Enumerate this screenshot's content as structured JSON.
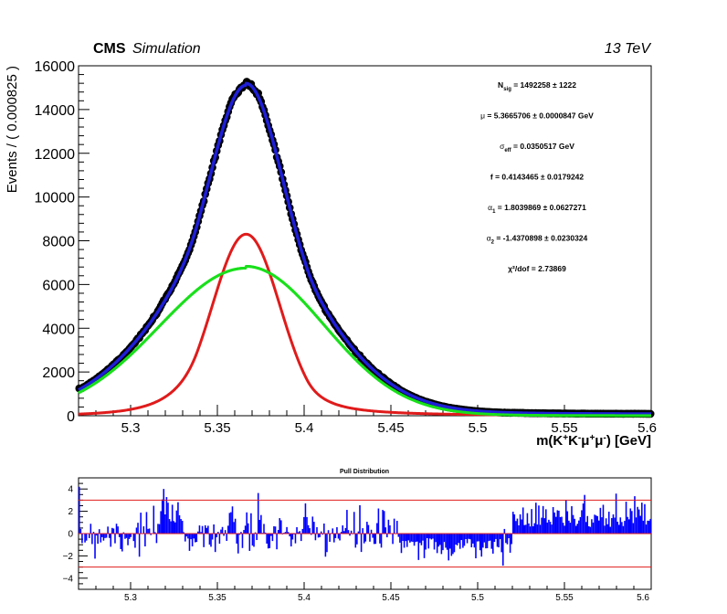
{
  "header": {
    "cms": "CMS",
    "simulation": "Simulation",
    "energy": "13 TeV"
  },
  "fit_results": [
    {
      "sym": "N",
      "sub": "sig",
      "text": " = 1492258  ± 1222"
    },
    {
      "sym": "μ",
      "sub": "",
      "text": "  = 5.3665706  ± 0.0000847 GeV"
    },
    {
      "sym": "σ",
      "sub": "eff",
      "text": " = 0.0350517  GeV"
    },
    {
      "sym": "f",
      "sub": "",
      "text": " = 0.4143465  ± 0.0179242"
    },
    {
      "sym": "α",
      "sub": "1",
      "text": " = 1.8039869  ± 0.0627271"
    },
    {
      "sym": "α",
      "sub": "2",
      "text": " = -1.4370898  ± 0.0230324"
    },
    {
      "sym": "χ²/dof",
      "sub": "",
      "text": "  = 2.73869"
    }
  ],
  "chart_data": [
    {
      "type": "line",
      "title": "",
      "ylabel": "Events / ( 0.000825 )",
      "xlabel_parts": [
        {
          "t": "m(K"
        },
        {
          "t": "+",
          "sup": true
        },
        {
          "t": "K"
        },
        {
          "t": "-",
          "sup": true
        },
        {
          "t": "μ"
        },
        {
          "t": "+",
          "sup": true
        },
        {
          "t": "μ"
        },
        {
          "t": "-",
          "sup": true
        },
        {
          "t": ") [GeV]"
        }
      ],
      "xlim": [
        5.27,
        5.6
      ],
      "ylim": [
        0,
        16000
      ],
      "x_ticks": [
        "5.3",
        "5.35",
        "5.4",
        "5.45",
        "5.5",
        "5.55",
        "5.6"
      ],
      "y_ticks": [
        "0",
        "2000",
        "4000",
        "6000",
        "8000",
        "10000",
        "12000",
        "14000",
        "16000"
      ],
      "model": {
        "mu": 5.3665706,
        "total_peak": 15150,
        "cb_peak": 8300,
        "cb_sigma": 0.0195,
        "alpha1": 1.8039869,
        "alpha2": -1.4370898,
        "n1": 2.0,
        "n2": 6.0,
        "gauss_peak": 6750,
        "gauss_sigma": 0.05,
        "gauss_tail_right": 0.045
      },
      "series": [
        {
          "role": "data",
          "color": "#000000"
        },
        {
          "role": "total fit",
          "color": "#1f1fd8"
        },
        {
          "role": "crystal ball component",
          "color": "#e01b1b"
        },
        {
          "role": "gaussian component",
          "color": "#19e01b"
        }
      ]
    },
    {
      "type": "bar",
      "title": "Pull Distribution",
      "xlim": [
        5.27,
        5.6
      ],
      "ylim": [
        -5,
        5
      ],
      "x_ticks": [
        "5.3",
        "5.35",
        "5.4",
        "5.45",
        "5.5",
        "5.55",
        "5.6"
      ],
      "y_ticks": [
        "−4",
        "−2",
        "0",
        "2",
        "4"
      ],
      "reference_lines": [
        3,
        0,
        -3
      ],
      "bar_color": "#0000ff",
      "line_color": "#e01b1b",
      "bins": 400
    }
  ]
}
